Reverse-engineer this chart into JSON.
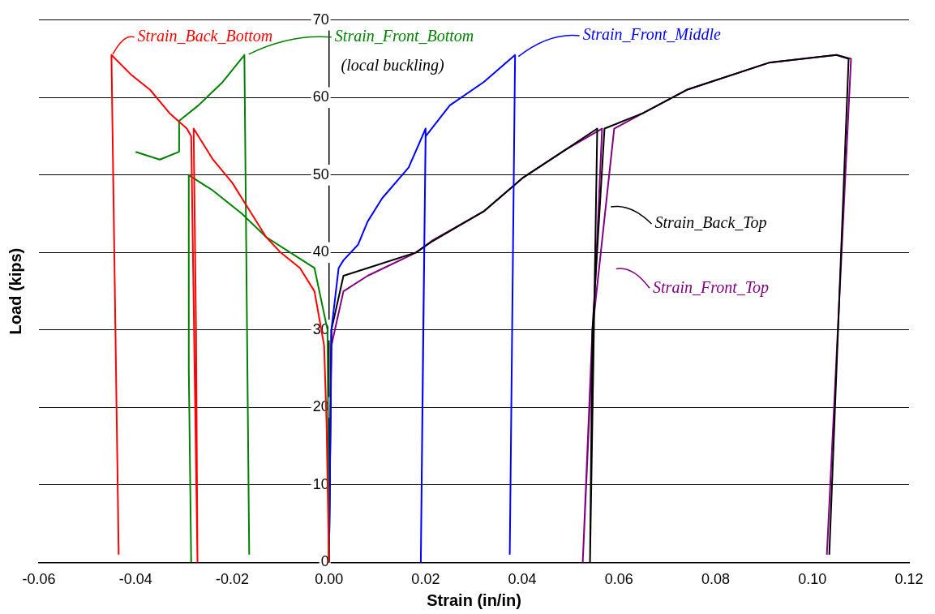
{
  "chart_data": {
    "type": "line",
    "xlabel": "Strain (in/in)",
    "ylabel": "Load (kips)",
    "xlim": [
      -0.06,
      0.12
    ],
    "xticks": [
      {
        "value": -0.06,
        "label": "-0.06"
      },
      {
        "value": -0.04,
        "label": "-0.04"
      },
      {
        "value": -0.02,
        "label": "-0.02"
      },
      {
        "value": 0,
        "label": "0.00"
      },
      {
        "value": 0.02,
        "label": "0.02"
      },
      {
        "value": 0.04,
        "label": "0.04"
      },
      {
        "value": 0.06,
        "label": "0.06"
      },
      {
        "value": 0.08,
        "label": "0.08"
      },
      {
        "value": 0.1,
        "label": "0.10"
      },
      {
        "value": 0.12,
        "label": "0.12"
      }
    ],
    "ylim": [
      0,
      70
    ],
    "yticks": [
      0,
      10,
      20,
      30,
      40,
      50,
      60,
      70
    ],
    "grid": "y",
    "legend": "top",
    "marker": "none",
    "line_style": "solid",
    "annotations": [
      "(local buckling)"
    ],
    "series": [
      {
        "name": "Strain_Back_Bottom",
        "color": "#ff0000",
        "x": [
          0,
          -0.0005,
          -0.001,
          -0.003,
          -0.006,
          -0.01,
          -0.013,
          -0.016,
          -0.02,
          -0.024,
          -0.028,
          -0.0275,
          -0.0272,
          -0.0285,
          -0.0294,
          -0.033,
          -0.037,
          -0.041,
          -0.045,
          -0.0435
        ],
        "values": [
          0,
          18,
          28,
          35,
          38,
          40,
          42,
          45,
          49,
          52,
          56,
          30,
          0,
          55,
          56,
          58,
          61,
          63,
          65.5,
          1
        ]
      },
      {
        "name": "Strain_Front_Bottom",
        "color": "#008000",
        "x": [
          0,
          -0.0003,
          -0.003,
          -0.008,
          -0.013,
          -0.018,
          -0.024,
          -0.029,
          -0.029,
          -0.0285,
          null,
          -0.04,
          -0.035,
          -0.031,
          -0.031,
          -0.027,
          -0.022,
          -0.0175,
          -0.0165
        ],
        "values": [
          0,
          30,
          38,
          40,
          42,
          45,
          48,
          50,
          25,
          0,
          null,
          53,
          52,
          53,
          57,
          59,
          62,
          65.5,
          1
        ]
      },
      {
        "name": "Strain_Front_Middle",
        "color": "#0000ff",
        "x": [
          0,
          0.0005,
          0.002,
          0.003,
          0.006,
          0.008,
          0.011,
          0.0165,
          0.02,
          0.019,
          0.0195,
          0.02,
          0.025,
          0.032,
          0.0385,
          0.0374
        ],
        "values": [
          0,
          30,
          38,
          39,
          41,
          44,
          47,
          51,
          56,
          0,
          30,
          55,
          59,
          62,
          65.5,
          1
        ]
      },
      {
        "name": "Strain_Back_Top",
        "color": "#000000",
        "x": [
          0,
          0.0005,
          0.003,
          0.008,
          0.018,
          0.0215,
          0.032,
          0.04,
          0.049,
          0.0555,
          0.054,
          0.0545,
          0.057,
          0.065,
          0.074,
          0.091,
          0.105,
          0.1075,
          0.1035
        ],
        "values": [
          0,
          30,
          37,
          38,
          40,
          41.5,
          45.3,
          49.6,
          53.3,
          56,
          0,
          30,
          56,
          58,
          61,
          64.5,
          65.5,
          65,
          1
        ]
      },
      {
        "name": "Strain_Front_Top",
        "color": "#800080",
        "x": [
          0,
          0.0005,
          0.003,
          0.008,
          0.018,
          0.0215,
          0.032,
          0.04,
          0.049,
          0.0565,
          0.0525,
          0.0545,
          0.059,
          0.065,
          0.074,
          0.091,
          0.105,
          0.108,
          0.103
        ],
        "values": [
          0,
          28,
          35,
          37,
          40,
          41.6,
          45.3,
          49.6,
          53.3,
          56,
          0,
          30,
          56,
          58,
          61,
          64.5,
          65.5,
          65,
          1
        ]
      }
    ]
  }
}
